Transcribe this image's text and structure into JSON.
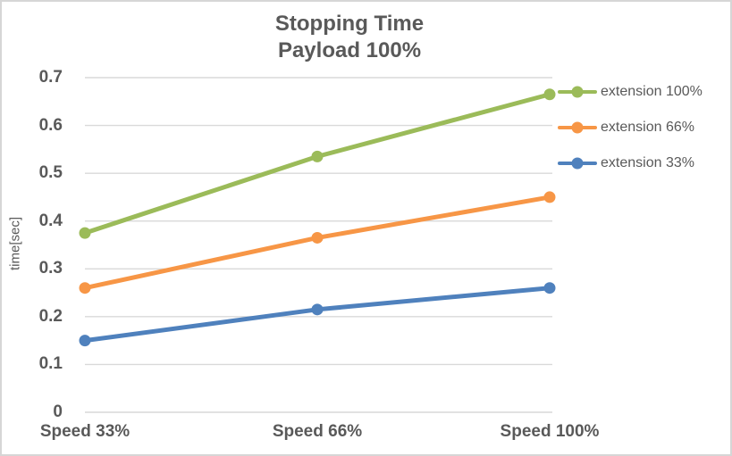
{
  "colors": {
    "text": "#595959",
    "gridline": "#d9d9d9",
    "border": "#d6d6d6",
    "background": "#ffffff"
  },
  "chart_data": {
    "type": "line",
    "title": "Stopping Time",
    "subtitle": "Payload 100%",
    "ylabel": "time[sec]",
    "xlabel": "",
    "categories": [
      "Speed 33%",
      "Speed 66%",
      "Speed 100%"
    ],
    "series": [
      {
        "name": "extension 100%",
        "color": "#9BBB59",
        "values": [
          0.375,
          0.535,
          0.665
        ]
      },
      {
        "name": "extension 66%",
        "color": "#F79646",
        "values": [
          0.26,
          0.365,
          0.45
        ]
      },
      {
        "name": "extension 33%",
        "color": "#4F81BD",
        "values": [
          0.15,
          0.215,
          0.26
        ]
      }
    ],
    "ylim": [
      0,
      0.7
    ],
    "y_ticks": [
      "0",
      "0.1",
      "0.2",
      "0.3",
      "0.4",
      "0.5",
      "0.6",
      "0.7"
    ],
    "grid": "horizontal",
    "legend_position": "right",
    "markers": "circle"
  }
}
